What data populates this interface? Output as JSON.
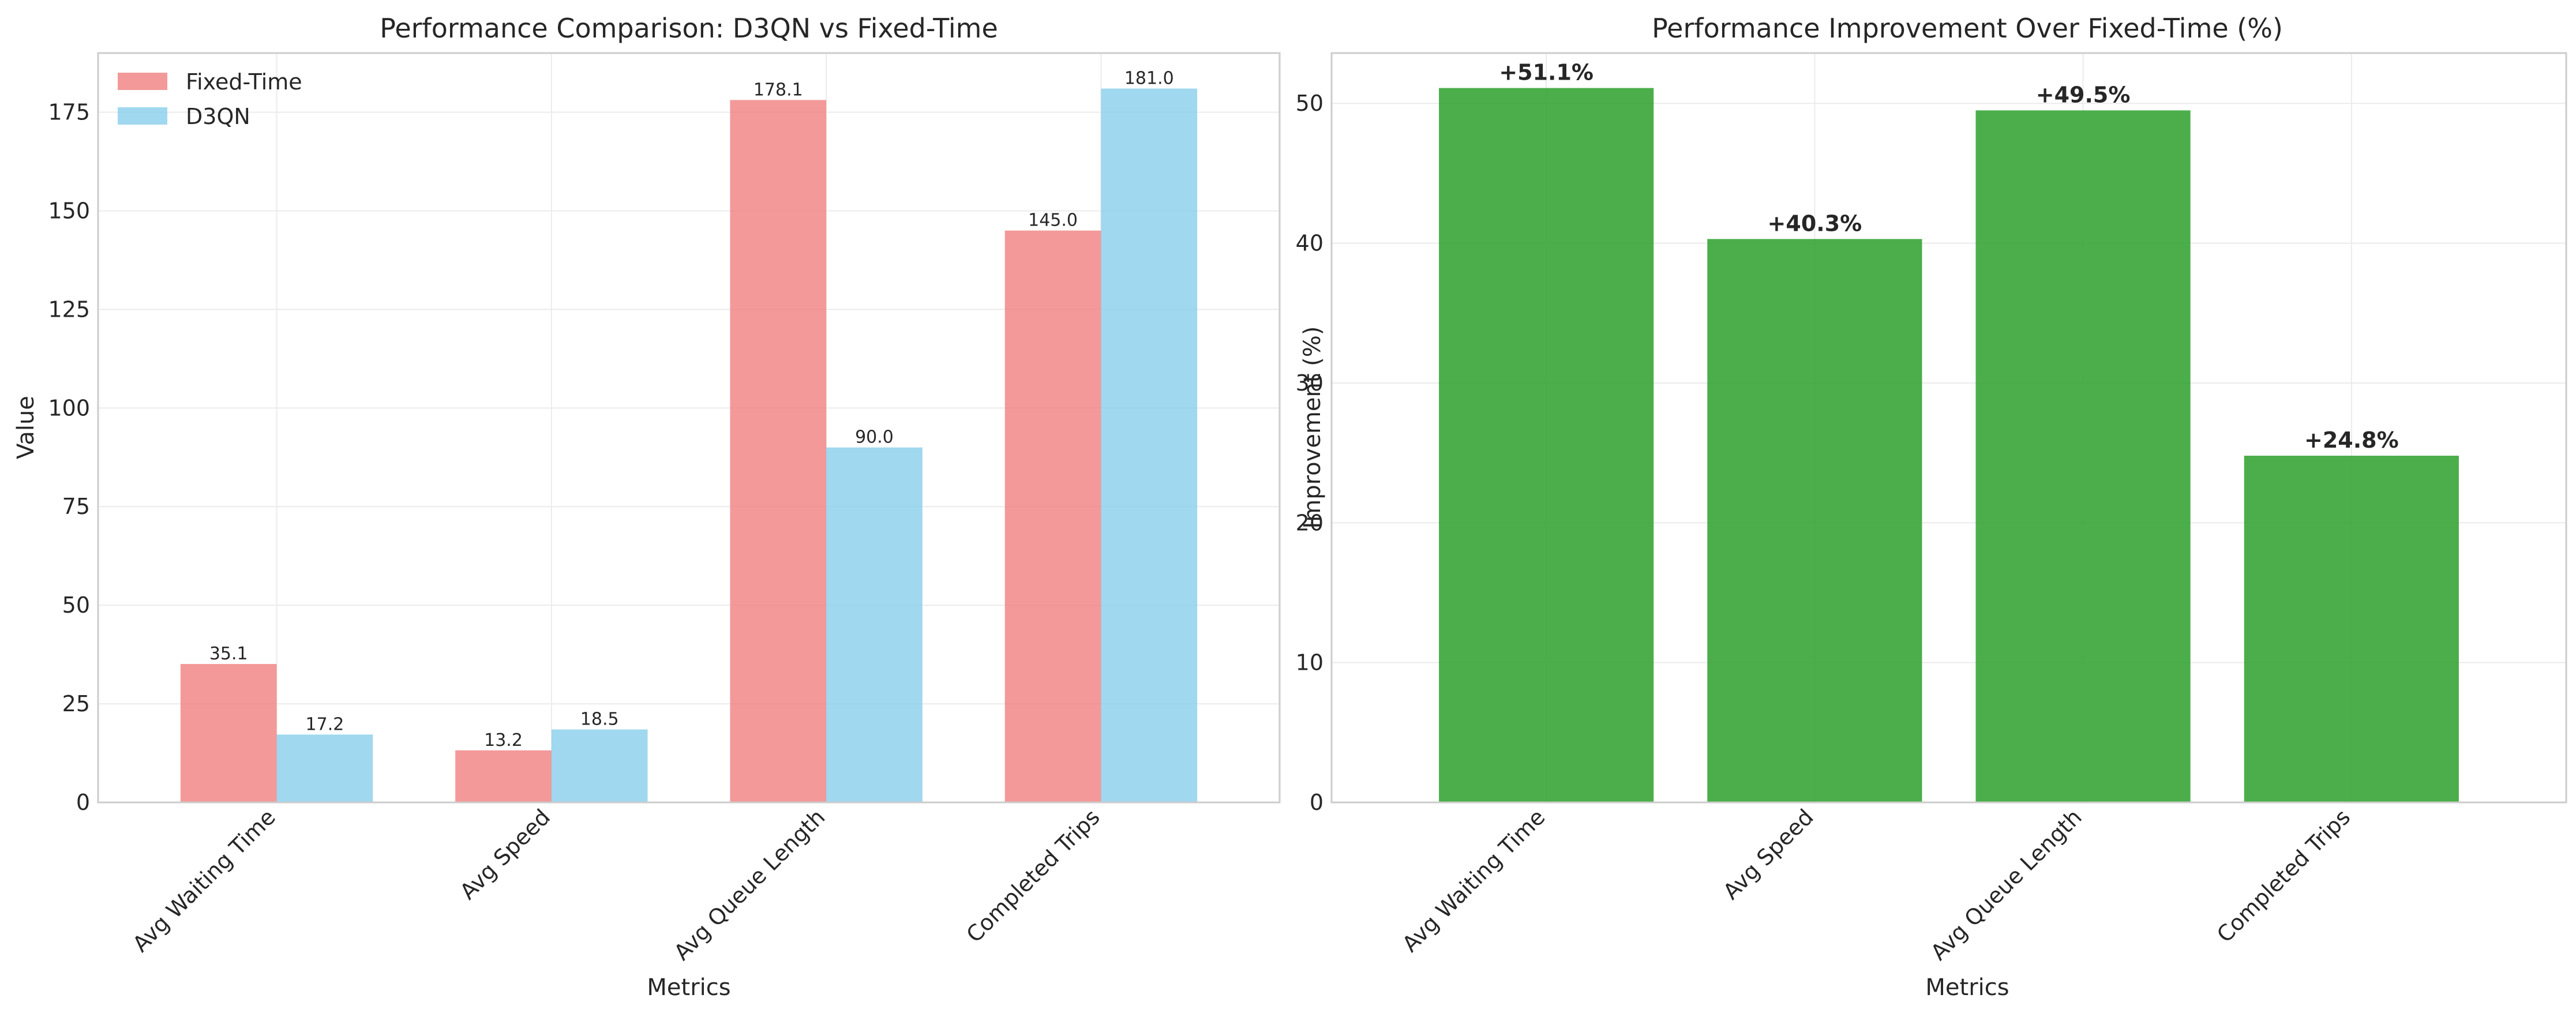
{
  "chart_data": [
    {
      "type": "bar",
      "title": "Performance Comparison: D3QN vs Fixed-Time",
      "xlabel": "Metrics",
      "ylabel": "Value",
      "categories": [
        "Avg Waiting Time",
        "Avg Speed",
        "Avg Queue Length",
        "Completed Trips"
      ],
      "series": [
        {
          "name": "Fixed-Time",
          "values": [
            35.1,
            13.2,
            178.1,
            145.0
          ],
          "labels": [
            "35.1",
            "13.2",
            "178.1",
            "145.0"
          ],
          "color": "#f08080"
        },
        {
          "name": "D3QN",
          "values": [
            17.2,
            18.5,
            90.0,
            181.0
          ],
          "labels": [
            "17.2",
            "18.5",
            "90.0",
            "181.0"
          ],
          "color": "#87ceeb"
        }
      ],
      "ylim": [
        0,
        190
      ],
      "yticks": [
        0,
        25,
        50,
        75,
        100,
        125,
        150,
        175
      ],
      "grid": true,
      "legend": "top-left"
    },
    {
      "type": "bar",
      "title": "Performance Improvement Over Fixed-Time (%)",
      "xlabel": "Metrics",
      "ylabel": "Improvement (%)",
      "categories": [
        "Avg Waiting Time",
        "Avg Speed",
        "Avg Queue Length",
        "Completed Trips"
      ],
      "values": [
        51.1,
        40.3,
        49.5,
        24.8
      ],
      "labels": [
        "+51.1%",
        "+40.3%",
        "+49.5%",
        "+24.8%"
      ],
      "color": "#2ca02c",
      "ylim": [
        0,
        53.6
      ],
      "yticks": [
        0,
        10,
        20,
        30,
        40,
        50
      ],
      "grid": true
    }
  ]
}
